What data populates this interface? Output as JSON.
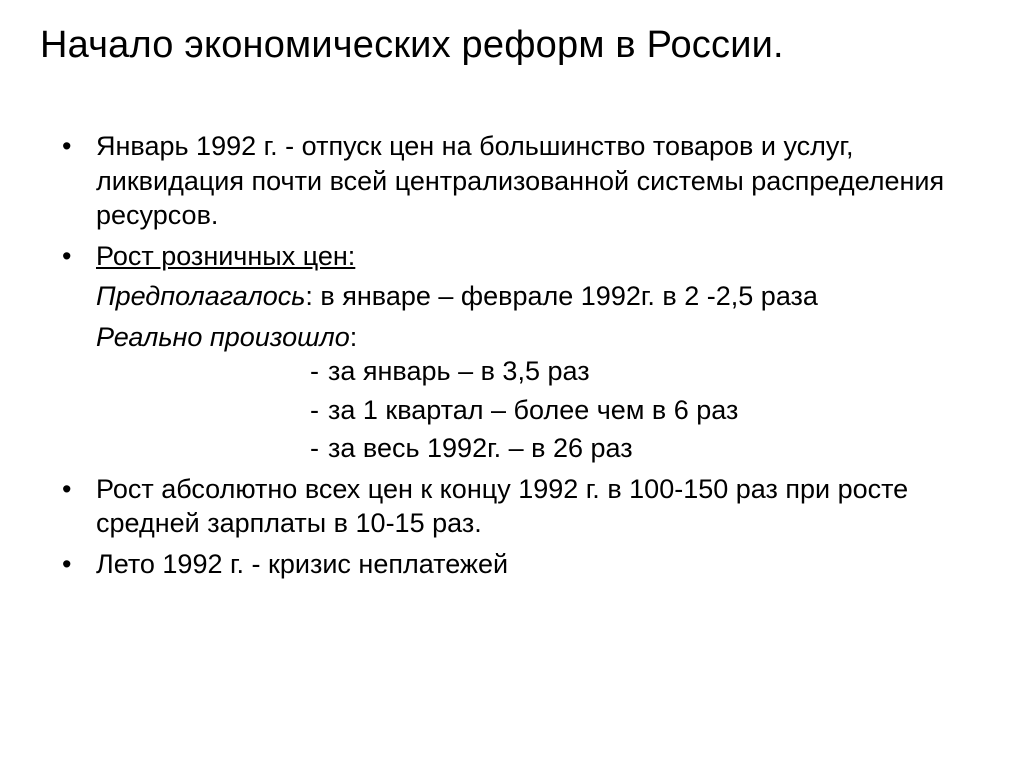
{
  "title": "Начало экономических реформ в России.",
  "bullets": {
    "b1": "Январь 1992 г. -  отпуск цен на большинство товаров и услуг, ликвидация почти всей централизованной системы распределения ресурсов.",
    "b2": "Рост розничных цен:",
    "b2_sub1_italic": "Предполагалось",
    "b2_sub1_rest": ": в январе – феврале 1992г. в 2 -2,5 раза",
    "b2_sub2_italic": "Реально  произошло",
    "b2_sub2_rest": ":",
    "dash1": "за январь – в 3,5 раз",
    "dash1_pre": " ",
    "dash2": "за 1 квартал – более чем в 6 раз",
    "dash3": "за весь 1992г. – в 26 раз",
    "b3": "Рост абсолютно всех цен к концу 1992 г. в 100-150 раз при росте средней зарплаты в 10-15 раз.",
    "b4": "Лето 1992 г. - кризис неплатежей"
  },
  "colors": {
    "background": "#ffffff",
    "text": "#000000"
  },
  "typography": {
    "title_fontsize": 38,
    "body_fontsize": 27,
    "font_family": "Arial"
  }
}
